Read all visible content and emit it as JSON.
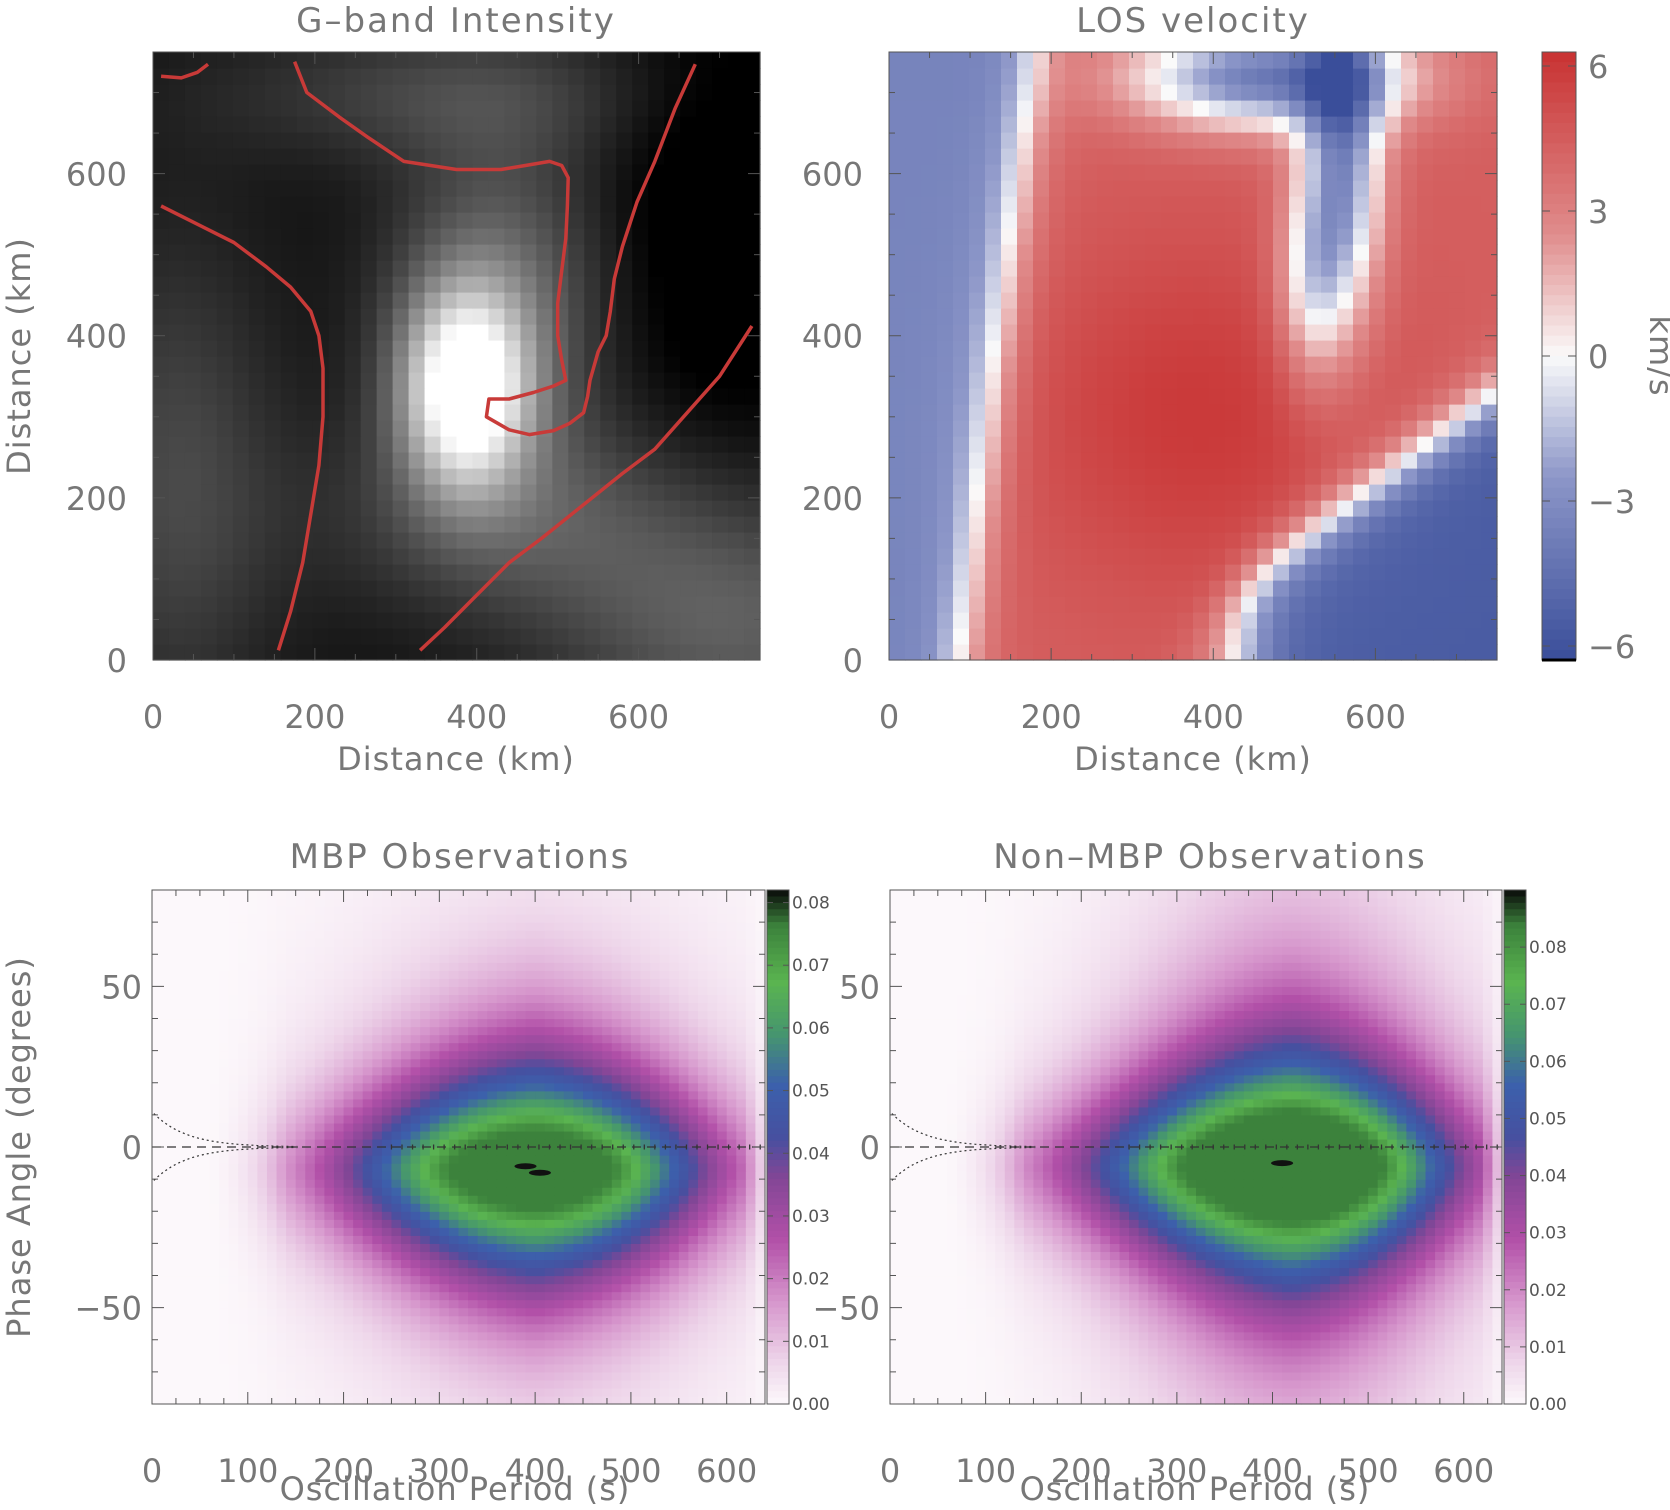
{
  "chart_data": [
    {
      "type": "heatmap",
      "title": "G–band Intensity",
      "xlabel": "Distance (km)",
      "ylabel": "Distance (km)",
      "xlim": [
        0,
        750
      ],
      "ylim": [
        0,
        750
      ],
      "xticks": [
        0,
        200,
        400,
        600
      ],
      "yticks": [
        0,
        200,
        400,
        600
      ],
      "colormap": "grayscale",
      "bright_point_center_km": [
        385,
        335
      ],
      "contours": [
        {
          "color": "#c83a38",
          "points": [
            [
              10,
              720
            ],
            [
              35,
              718
            ],
            [
              55,
              725
            ],
            [
              68,
              735
            ]
          ]
        },
        {
          "color": "#c83a38",
          "points": [
            [
              175,
              738
            ],
            [
              190,
              700
            ],
            [
              230,
              670
            ],
            [
              265,
              645
            ],
            [
              310,
              615
            ],
            [
              375,
              605
            ],
            [
              430,
              605
            ],
            [
              460,
              610
            ],
            [
              490,
              615
            ],
            [
              505,
              610
            ],
            [
              513,
              595
            ],
            [
              512,
              560
            ],
            [
              510,
              520
            ],
            [
              505,
              480
            ],
            [
              500,
              440
            ],
            [
              500,
              400
            ],
            [
              505,
              370
            ],
            [
              510,
              345
            ],
            [
              495,
              338
            ],
            [
              470,
              330
            ],
            [
              440,
              322
            ],
            [
              415,
              322
            ],
            [
              412,
              300
            ],
            [
              440,
              284
            ],
            [
              465,
              278
            ],
            [
              495,
              283
            ],
            [
              515,
              292
            ],
            [
              532,
              305
            ],
            [
              537,
              325
            ],
            [
              540,
              345
            ],
            [
              550,
              380
            ],
            [
              560,
              400
            ],
            [
              565,
              430
            ],
            [
              570,
              470
            ],
            [
              580,
              510
            ],
            [
              598,
              565
            ],
            [
              620,
              615
            ],
            [
              645,
              680
            ],
            [
              670,
              735
            ]
          ]
        },
        {
          "color": "#c83a38",
          "points": [
            [
              10,
              560
            ],
            [
              60,
              535
            ],
            [
              100,
              515
            ],
            [
              140,
              485
            ],
            [
              170,
              460
            ],
            [
              195,
              430
            ],
            [
              205,
              400
            ],
            [
              210,
              360
            ],
            [
              210,
              300
            ],
            [
              205,
              240
            ],
            [
              195,
              180
            ],
            [
              185,
              120
            ],
            [
              170,
              60
            ],
            [
              155,
              12
            ]
          ]
        },
        {
          "color": "#c83a38",
          "points": [
            [
              330,
              12
            ],
            [
              360,
              40
            ],
            [
              400,
              80
            ],
            [
              440,
              120
            ],
            [
              480,
              150
            ],
            [
              530,
              190
            ],
            [
              580,
              230
            ],
            [
              620,
              260
            ],
            [
              660,
              305
            ],
            [
              700,
              350
            ],
            [
              740,
              412
            ]
          ]
        }
      ]
    },
    {
      "type": "heatmap",
      "title": "LOS velocity",
      "xlabel": "Distance (km)",
      "ylabel": "",
      "xlim": [
        0,
        750
      ],
      "ylim": [
        0,
        750
      ],
      "xticks": [
        0,
        200,
        400,
        600
      ],
      "yticks": [
        0,
        200,
        400,
        600
      ],
      "colormap": "blue-white-red",
      "colorbar": {
        "label": "km/s",
        "min": -6,
        "max": 6,
        "ticks": [
          "6",
          "3",
          "0",
          "−3",
          "−6"
        ]
      }
    },
    {
      "type": "heatmap",
      "title": "MBP Observations",
      "xlabel": "Oscillation Period (s)",
      "ylabel": "Phase Angle (degrees)",
      "xlim": [
        0,
        640
      ],
      "ylim": [
        -80,
        80
      ],
      "xticks": [
        0,
        100,
        200,
        300,
        400,
        500,
        600
      ],
      "yticks": [
        50,
        0,
        -50
      ],
      "ytick_labels": [
        "50",
        "0",
        "−50"
      ],
      "peak": {
        "period": 400,
        "phase": -7,
        "density": 0.08
      },
      "colorbar": {
        "min": 0.0,
        "max": 0.082,
        "ticks": [
          "0.08",
          "0.07",
          "0.06",
          "0.05",
          "0.04",
          "0.03",
          "0.02",
          "0.01",
          "0.00"
        ],
        "tick_values": [
          0.08,
          0.07,
          0.06,
          0.05,
          0.04,
          0.03,
          0.02,
          0.01,
          0.0
        ]
      }
    },
    {
      "type": "heatmap",
      "title": "Non–MBP Observations",
      "xlabel": "Oscillation Period (s)",
      "ylabel": "",
      "xlim": [
        0,
        640
      ],
      "ylim": [
        -80,
        80
      ],
      "xticks": [
        0,
        100,
        200,
        300,
        400,
        500,
        600
      ],
      "yticks": [
        50,
        0,
        -50
      ],
      "ytick_labels": [
        "50",
        "0",
        "−50"
      ],
      "peak": {
        "period": 420,
        "phase": -6,
        "density": 0.085
      },
      "colorbar": {
        "min": 0.0,
        "max": 0.09,
        "ticks": [
          "0.08",
          "0.07",
          "0.06",
          "0.05",
          "0.04",
          "0.03",
          "0.02",
          "0.01",
          "0.00"
        ],
        "tick_values": [
          0.08,
          0.07,
          0.06,
          0.05,
          0.04,
          0.03,
          0.02,
          0.01,
          0.0
        ]
      }
    }
  ],
  "colors": {
    "contour": "#c83a38",
    "velocity_red": "#c83232",
    "velocity_blue": "#3a4e9a",
    "density_magenta": "#a0408f",
    "density_blue": "#3c5ca8",
    "density_green": "#4aa54a"
  }
}
